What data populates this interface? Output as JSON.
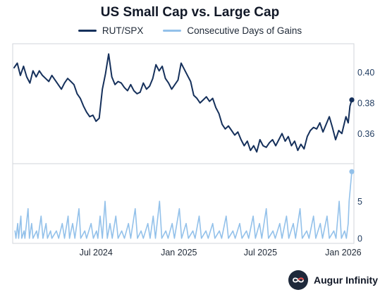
{
  "chart_data": {
    "type": "line",
    "title": "US Small Cap vs. Large Cap",
    "legend_position": "top-center",
    "grid": false,
    "x": {
      "ticks": [
        "Jul 2024",
        "Jan 2025",
        "Jul 2025",
        "Jan 2026"
      ],
      "range": [
        "2024-01-01",
        "2026-01-20"
      ]
    },
    "panels": [
      {
        "series": "RUT/SPX",
        "y_ticks": [
          0.36,
          0.38,
          0.4
        ],
        "y_tick_labels": [
          "0.36",
          "0.38",
          "0.40"
        ],
        "ylim": [
          0.344,
          0.415
        ]
      },
      {
        "series": "Consecutive Days of Gains",
        "y_ticks": [
          0,
          5
        ],
        "y_tick_labels": [
          "0",
          "5"
        ],
        "ylim": [
          -0.3,
          9.5
        ]
      }
    ],
    "series": [
      {
        "name": "RUT/SPX",
        "color": "#15305b",
        "end_marker": true,
        "points": [
          [
            "2024-01-01",
            0.403
          ],
          [
            "2024-01-08",
            0.406
          ],
          [
            "2024-01-15",
            0.398
          ],
          [
            "2024-01-22",
            0.404
          ],
          [
            "2024-01-29",
            0.397
          ],
          [
            "2024-02-05",
            0.393
          ],
          [
            "2024-02-12",
            0.401
          ],
          [
            "2024-02-19",
            0.397
          ],
          [
            "2024-02-26",
            0.401
          ],
          [
            "2024-03-04",
            0.398
          ],
          [
            "2024-03-11",
            0.396
          ],
          [
            "2024-03-18",
            0.394
          ],
          [
            "2024-03-25",
            0.398
          ],
          [
            "2024-04-01",
            0.395
          ],
          [
            "2024-04-08",
            0.392
          ],
          [
            "2024-04-15",
            0.389
          ],
          [
            "2024-04-22",
            0.393
          ],
          [
            "2024-04-29",
            0.396
          ],
          [
            "2024-05-06",
            0.394
          ],
          [
            "2024-05-13",
            0.392
          ],
          [
            "2024-05-20",
            0.386
          ],
          [
            "2024-05-27",
            0.383
          ],
          [
            "2024-06-03",
            0.378
          ],
          [
            "2024-06-10",
            0.374
          ],
          [
            "2024-06-17",
            0.371
          ],
          [
            "2024-06-24",
            0.372
          ],
          [
            "2024-07-01",
            0.368
          ],
          [
            "2024-07-08",
            0.37
          ],
          [
            "2024-07-15",
            0.389
          ],
          [
            "2024-07-22",
            0.399
          ],
          [
            "2024-07-29",
            0.412
          ],
          [
            "2024-08-05",
            0.397
          ],
          [
            "2024-08-12",
            0.392
          ],
          [
            "2024-08-19",
            0.394
          ],
          [
            "2024-08-26",
            0.393
          ],
          [
            "2024-09-02",
            0.39
          ],
          [
            "2024-09-09",
            0.388
          ],
          [
            "2024-09-16",
            0.392
          ],
          [
            "2024-09-23",
            0.388
          ],
          [
            "2024-09-30",
            0.386
          ],
          [
            "2024-10-07",
            0.387
          ],
          [
            "2024-10-14",
            0.393
          ],
          [
            "2024-10-21",
            0.389
          ],
          [
            "2024-10-28",
            0.391
          ],
          [
            "2024-11-04",
            0.396
          ],
          [
            "2024-11-11",
            0.405
          ],
          [
            "2024-11-18",
            0.401
          ],
          [
            "2024-11-25",
            0.404
          ],
          [
            "2024-12-02",
            0.396
          ],
          [
            "2024-12-09",
            0.393
          ],
          [
            "2024-12-16",
            0.389
          ],
          [
            "2024-12-23",
            0.392
          ],
          [
            "2024-12-30",
            0.395
          ],
          [
            "2025-01-06",
            0.406
          ],
          [
            "2025-01-13",
            0.402
          ],
          [
            "2025-01-20",
            0.398
          ],
          [
            "2025-01-27",
            0.394
          ],
          [
            "2025-02-03",
            0.385
          ],
          [
            "2025-02-10",
            0.383
          ],
          [
            "2025-02-17",
            0.38
          ],
          [
            "2025-02-24",
            0.382
          ],
          [
            "2025-03-03",
            0.384
          ],
          [
            "2025-03-10",
            0.381
          ],
          [
            "2025-03-17",
            0.383
          ],
          [
            "2025-03-24",
            0.377
          ],
          [
            "2025-03-31",
            0.373
          ],
          [
            "2025-04-07",
            0.366
          ],
          [
            "2025-04-14",
            0.363
          ],
          [
            "2025-04-21",
            0.365
          ],
          [
            "2025-04-28",
            0.362
          ],
          [
            "2025-05-05",
            0.359
          ],
          [
            "2025-05-12",
            0.361
          ],
          [
            "2025-05-19",
            0.356
          ],
          [
            "2025-05-26",
            0.352
          ],
          [
            "2025-06-02",
            0.355
          ],
          [
            "2025-06-09",
            0.349
          ],
          [
            "2025-06-16",
            0.352
          ],
          [
            "2025-06-23",
            0.348
          ],
          [
            "2025-06-30",
            0.356
          ],
          [
            "2025-07-07",
            0.352
          ],
          [
            "2025-07-14",
            0.351
          ],
          [
            "2025-07-21",
            0.354
          ],
          [
            "2025-07-28",
            0.356
          ],
          [
            "2025-08-04",
            0.352
          ],
          [
            "2025-08-11",
            0.356
          ],
          [
            "2025-08-18",
            0.36
          ],
          [
            "2025-08-25",
            0.355
          ],
          [
            "2025-09-01",
            0.358
          ],
          [
            "2025-09-08",
            0.352
          ],
          [
            "2025-09-15",
            0.355
          ],
          [
            "2025-09-22",
            0.349
          ],
          [
            "2025-09-29",
            0.353
          ],
          [
            "2025-10-06",
            0.35
          ],
          [
            "2025-10-13",
            0.358
          ],
          [
            "2025-10-20",
            0.362
          ],
          [
            "2025-10-27",
            0.364
          ],
          [
            "2025-11-03",
            0.363
          ],
          [
            "2025-11-10",
            0.367
          ],
          [
            "2025-11-17",
            0.361
          ],
          [
            "2025-11-24",
            0.366
          ],
          [
            "2025-12-01",
            0.371
          ],
          [
            "2025-12-08",
            0.364
          ],
          [
            "2025-12-15",
            0.356
          ],
          [
            "2025-12-22",
            0.362
          ],
          [
            "2025-12-29",
            0.36
          ],
          [
            "2026-01-02",
            0.365
          ],
          [
            "2026-01-07",
            0.371
          ],
          [
            "2026-01-12",
            0.367
          ],
          [
            "2026-01-16",
            0.378
          ],
          [
            "2026-01-20",
            0.382
          ]
        ]
      },
      {
        "name": "Consecutive Days of Gains",
        "color": "#93c1ea",
        "end_marker": true,
        "points": [
          [
            "2024-01-03",
            1
          ],
          [
            "2024-01-05",
            0
          ],
          [
            "2024-01-09",
            2
          ],
          [
            "2024-01-11",
            0
          ],
          [
            "2024-01-16",
            3
          ],
          [
            "2024-01-18",
            0
          ],
          [
            "2024-01-23",
            1
          ],
          [
            "2024-01-25",
            0
          ],
          [
            "2024-02-01",
            4
          ],
          [
            "2024-02-04",
            0
          ],
          [
            "2024-02-09",
            2
          ],
          [
            "2024-02-12",
            0
          ],
          [
            "2024-02-20",
            1
          ],
          [
            "2024-02-23",
            0
          ],
          [
            "2024-03-01",
            3
          ],
          [
            "2024-03-05",
            0
          ],
          [
            "2024-03-12",
            2
          ],
          [
            "2024-03-15",
            0
          ],
          [
            "2024-03-22",
            1
          ],
          [
            "2024-03-25",
            0
          ],
          [
            "2024-04-04",
            1
          ],
          [
            "2024-04-09",
            0
          ],
          [
            "2024-04-17",
            2
          ],
          [
            "2024-04-22",
            0
          ],
          [
            "2024-04-30",
            3
          ],
          [
            "2024-05-03",
            0
          ],
          [
            "2024-05-10",
            2
          ],
          [
            "2024-05-15",
            0
          ],
          [
            "2024-05-24",
            4
          ],
          [
            "2024-05-28",
            0
          ],
          [
            "2024-06-06",
            1
          ],
          [
            "2024-06-10",
            0
          ],
          [
            "2024-06-20",
            2
          ],
          [
            "2024-06-25",
            0
          ],
          [
            "2024-07-02",
            1
          ],
          [
            "2024-07-05",
            0
          ],
          [
            "2024-07-10",
            3
          ],
          [
            "2024-07-15",
            0
          ],
          [
            "2024-07-21",
            5
          ],
          [
            "2024-07-26",
            0
          ],
          [
            "2024-08-01",
            2
          ],
          [
            "2024-08-06",
            0
          ],
          [
            "2024-08-14",
            3
          ],
          [
            "2024-08-19",
            0
          ],
          [
            "2024-08-27",
            1
          ],
          [
            "2024-09-02",
            0
          ],
          [
            "2024-09-11",
            2
          ],
          [
            "2024-09-16",
            0
          ],
          [
            "2024-09-26",
            4
          ],
          [
            "2024-10-01",
            0
          ],
          [
            "2024-10-09",
            1
          ],
          [
            "2024-10-14",
            0
          ],
          [
            "2024-10-24",
            2
          ],
          [
            "2024-10-29",
            0
          ],
          [
            "2024-11-05",
            3
          ],
          [
            "2024-11-10",
            0
          ],
          [
            "2024-11-19",
            5
          ],
          [
            "2024-11-24",
            0
          ],
          [
            "2024-12-03",
            1
          ],
          [
            "2024-12-08",
            0
          ],
          [
            "2024-12-17",
            2
          ],
          [
            "2024-12-22",
            0
          ],
          [
            "2025-01-02",
            4
          ],
          [
            "2025-01-07",
            0
          ],
          [
            "2025-01-17",
            2
          ],
          [
            "2025-01-22",
            0
          ],
          [
            "2025-02-01",
            1
          ],
          [
            "2025-02-06",
            0
          ],
          [
            "2025-02-15",
            3
          ],
          [
            "2025-02-20",
            0
          ],
          [
            "2025-03-02",
            1
          ],
          [
            "2025-03-07",
            0
          ],
          [
            "2025-03-17",
            2
          ],
          [
            "2025-03-22",
            0
          ],
          [
            "2025-04-01",
            1
          ],
          [
            "2025-04-06",
            0
          ],
          [
            "2025-04-16",
            3
          ],
          [
            "2025-04-21",
            0
          ],
          [
            "2025-05-01",
            1
          ],
          [
            "2025-05-06",
            0
          ],
          [
            "2025-05-16",
            2
          ],
          [
            "2025-05-21",
            0
          ],
          [
            "2025-05-31",
            1
          ],
          [
            "2025-06-05",
            0
          ],
          [
            "2025-06-15",
            3
          ],
          [
            "2025-06-20",
            0
          ],
          [
            "2025-06-29",
            2
          ],
          [
            "2025-07-04",
            0
          ],
          [
            "2025-07-14",
            4
          ],
          [
            "2025-07-19",
            0
          ],
          [
            "2025-07-29",
            1
          ],
          [
            "2025-08-03",
            0
          ],
          [
            "2025-08-13",
            2
          ],
          [
            "2025-08-18",
            0
          ],
          [
            "2025-08-28",
            3
          ],
          [
            "2025-09-02",
            0
          ],
          [
            "2025-09-12",
            2
          ],
          [
            "2025-09-17",
            0
          ],
          [
            "2025-09-27",
            4
          ],
          [
            "2025-10-02",
            0
          ],
          [
            "2025-10-12",
            1
          ],
          [
            "2025-10-17",
            0
          ],
          [
            "2025-10-27",
            3
          ],
          [
            "2025-11-01",
            0
          ],
          [
            "2025-11-11",
            2
          ],
          [
            "2025-11-16",
            0
          ],
          [
            "2025-11-26",
            3
          ],
          [
            "2025-12-01",
            0
          ],
          [
            "2025-12-11",
            1
          ],
          [
            "2025-12-16",
            0
          ],
          [
            "2025-12-23",
            5
          ],
          [
            "2025-12-28",
            0
          ],
          [
            "2026-01-04",
            1
          ],
          [
            "2026-01-08",
            0
          ],
          [
            "2026-01-12",
            2
          ],
          [
            "2026-01-14",
            5
          ],
          [
            "2026-01-17",
            7
          ],
          [
            "2026-01-20",
            9
          ]
        ]
      }
    ]
  },
  "branding": {
    "name": "Augur Infinity"
  }
}
